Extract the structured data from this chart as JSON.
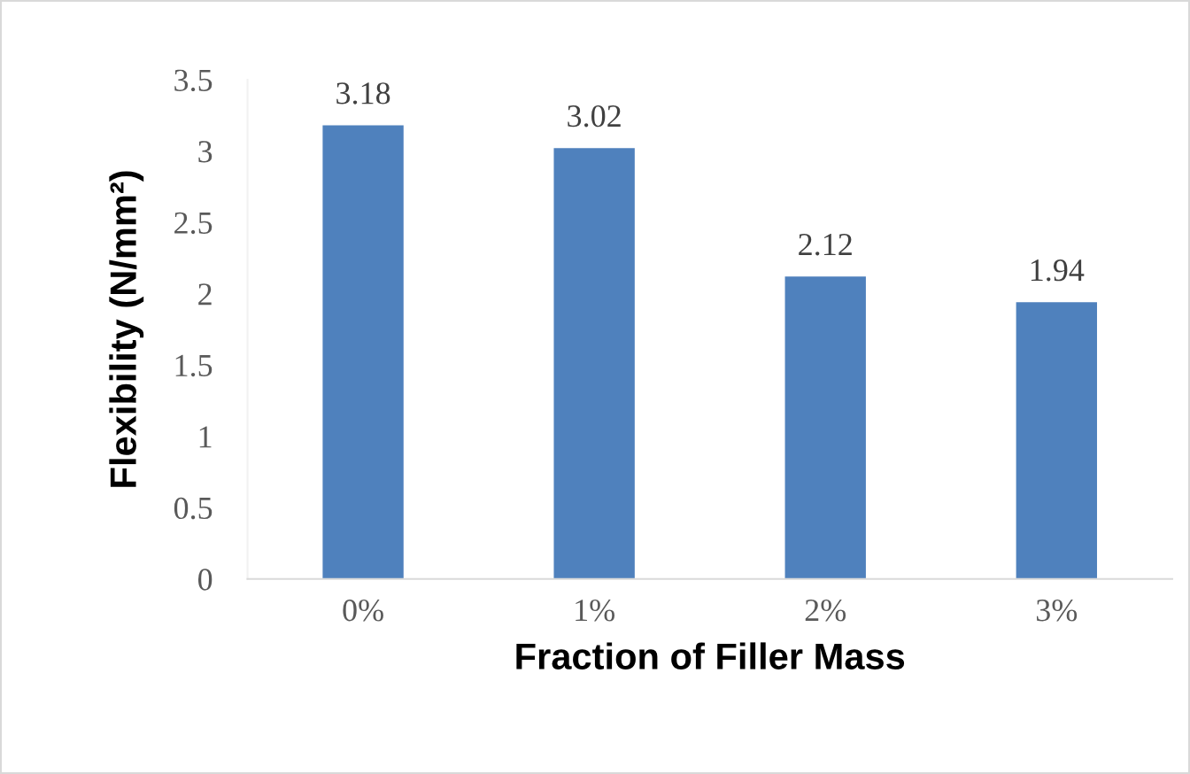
{
  "chart_data": {
    "type": "bar",
    "categories": [
      "0%",
      "1%",
      "2%",
      "3%"
    ],
    "values": [
      3.18,
      3.02,
      2.12,
      1.94
    ],
    "color": "#4f81bd",
    "xlabel": "Fraction of Filler Mass",
    "ylabel": "Flexibility (N/mm²)",
    "ylim": [
      0,
      3.5
    ],
    "yticks": [
      0,
      0.5,
      1,
      1.5,
      2,
      2.5,
      3,
      3.5
    ],
    "data_labels": true,
    "grid": false,
    "legend": false
  }
}
